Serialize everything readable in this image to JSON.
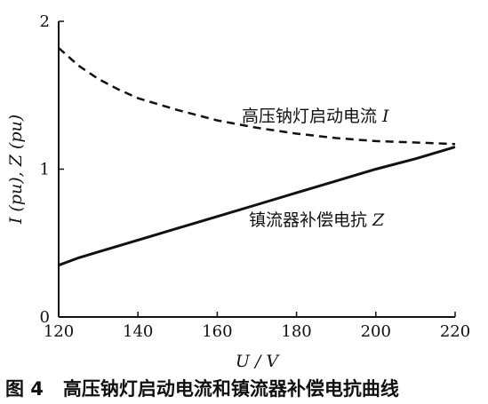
{
  "chart_data": {
    "type": "line",
    "x": [
      120,
      125,
      130,
      135,
      140,
      150,
      160,
      170,
      180,
      190,
      200,
      210,
      220
    ],
    "series": [
      {
        "name": "高压钠灯启动电流",
        "symbol": "I",
        "style": "dashed",
        "values": [
          1.82,
          1.7,
          1.61,
          1.54,
          1.48,
          1.4,
          1.33,
          1.28,
          1.24,
          1.21,
          1.19,
          1.18,
          1.17
        ]
      },
      {
        "name": "镇流器补偿电抗",
        "symbol": "Z",
        "style": "solid",
        "values": [
          0.35,
          0.4,
          0.44,
          0.48,
          0.52,
          0.6,
          0.68,
          0.76,
          0.84,
          0.92,
          1.0,
          1.07,
          1.15
        ]
      }
    ],
    "xlabel": "U / V",
    "ylabel": "I (pu), Z (pu)",
    "xlim": [
      120,
      220
    ],
    "ylim": [
      0,
      2
    ],
    "xticks": [
      "120",
      "140",
      "160",
      "180",
      "200",
      "220"
    ],
    "yticks": [
      "0",
      "1",
      "2"
    ],
    "grid": false,
    "legend": "inline labels"
  },
  "caption": {
    "figure_label": "图 4",
    "text": "高压钠灯启动电流和镇流器补偿电抗曲线"
  }
}
